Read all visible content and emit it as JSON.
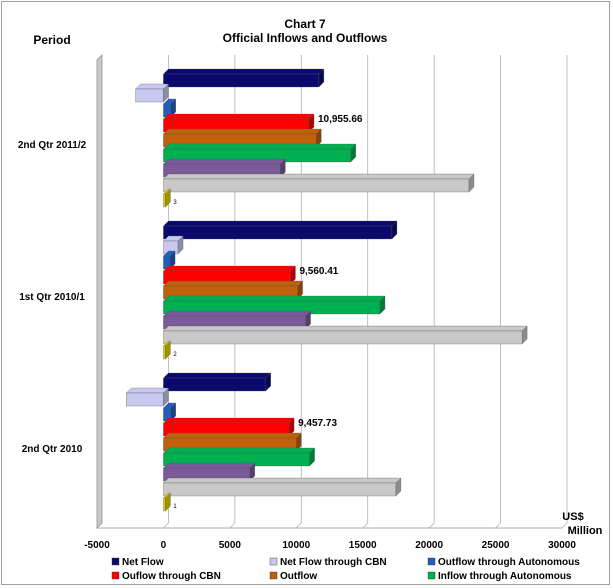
{
  "chart_data": {
    "type": "bar",
    "orientation": "horizontal",
    "title": "Chart 7",
    "subtitle": "Official Inflows and Outflows",
    "category_axis_label": "Period",
    "value_axis_label": "US$ Million",
    "xlim": [
      -5000,
      30000
    ],
    "x_ticks": [
      -5000,
      0,
      5000,
      10000,
      15000,
      20000,
      25000,
      30000
    ],
    "x_tick_labels": [
      "-5000",
      "0",
      "5000",
      "10000",
      "15000",
      "20000",
      "25000",
      "30000"
    ],
    "grid": true,
    "legend_position": "bottom",
    "categories": [
      "2nd Qtr 2011/2",
      "1st Qtr 2010/1",
      "2nd Qtr 2010"
    ],
    "series": [
      {
        "name": "Net Flow",
        "color": "#0a0a6e",
        "values": [
          11700,
          17200,
          7700
        ]
      },
      {
        "name": "Net Flow through CBN",
        "color": "#c8c8f0",
        "values": [
          -2100,
          1100,
          -2800
        ]
      },
      {
        "name": "Outflow through Autonomous",
        "color": "#1f5fbf",
        "values": [
          550,
          500,
          550
        ]
      },
      {
        "name": "Ouflow through CBN",
        "color": "#ff0000",
        "values": [
          10955.66,
          9560.41,
          9457.73
        ]
      },
      {
        "name": "Outflow",
        "color": "#c0600a",
        "values": [
          11500,
          10100,
          10000
        ]
      },
      {
        "name": "Inflow through Autonomous",
        "color": "#00b050",
        "values": [
          14100,
          16300,
          11000
        ]
      },
      {
        "name": "",
        "color": "#7a5a9a",
        "values": [
          8800,
          10700,
          6500
        ]
      },
      {
        "name": "",
        "color": "#c8c8c8",
        "values": [
          23000,
          27000,
          17500
        ]
      },
      {
        "name": "",
        "color": "#e0d000",
        "values": [
          100,
          100,
          100
        ]
      }
    ],
    "data_labels": [
      "10,955.66",
      "9,560.41",
      "9,457.73"
    ],
    "small_labels": [
      "3",
      "2",
      "1"
    ]
  }
}
